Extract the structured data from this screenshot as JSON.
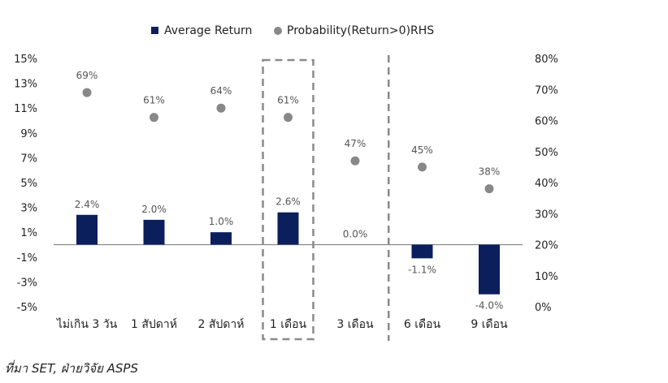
{
  "chart_data": {
    "type": "bar",
    "categories": [
      "ไม่เกิน 3 วัน",
      "1 สัปดาห์",
      "2 สัปดาห์",
      "1 เดือน",
      "3 เดือน",
      "6 เดือน",
      "9 เดือน"
    ],
    "series": [
      {
        "name": "Average Return",
        "type": "bar",
        "axis": "left",
        "color": "#0b1f5c",
        "values": [
          2.4,
          2.0,
          1.0,
          2.6,
          0.0,
          -1.1,
          -4.0
        ],
        "labels": [
          "2.4%",
          "2.0%",
          "1.0%",
          "2.6%",
          "0.0%",
          "-1.1%",
          "-4.0%"
        ]
      },
      {
        "name": "Probability(Return>0)RHS",
        "type": "scatter",
        "axis": "right",
        "color": "#888888",
        "values": [
          69,
          61,
          64,
          61,
          47,
          45,
          38
        ],
        "labels": [
          "69%",
          "61%",
          "64%",
          "61%",
          "47%",
          "45%",
          "38%"
        ]
      }
    ],
    "y_left": {
      "ylim": [
        -5,
        15
      ],
      "ticks": [
        15,
        13,
        11,
        9,
        7,
        5,
        3,
        1,
        -1,
        -3,
        -5
      ],
      "tick_labels": [
        "15%",
        "13%",
        "11%",
        "9%",
        "7%",
        "5%",
        "3%",
        "1%",
        "-1%",
        "-3%",
        "-5%"
      ]
    },
    "y_right": {
      "ylim": [
        0,
        80
      ],
      "ticks": [
        80,
        70,
        60,
        50,
        40,
        30,
        20,
        10,
        0
      ],
      "tick_labels": [
        "80%",
        "70%",
        "60%",
        "50%",
        "40%",
        "30%",
        "20%",
        "10%",
        "0%"
      ]
    },
    "legend": {
      "position": "top"
    },
    "highlight_box_category": "1 เดือน",
    "divider_after_category": "3 เดือน",
    "grid": false
  },
  "source_note": "ที่มา SET, ฝ่ายวิจัย ASPS"
}
